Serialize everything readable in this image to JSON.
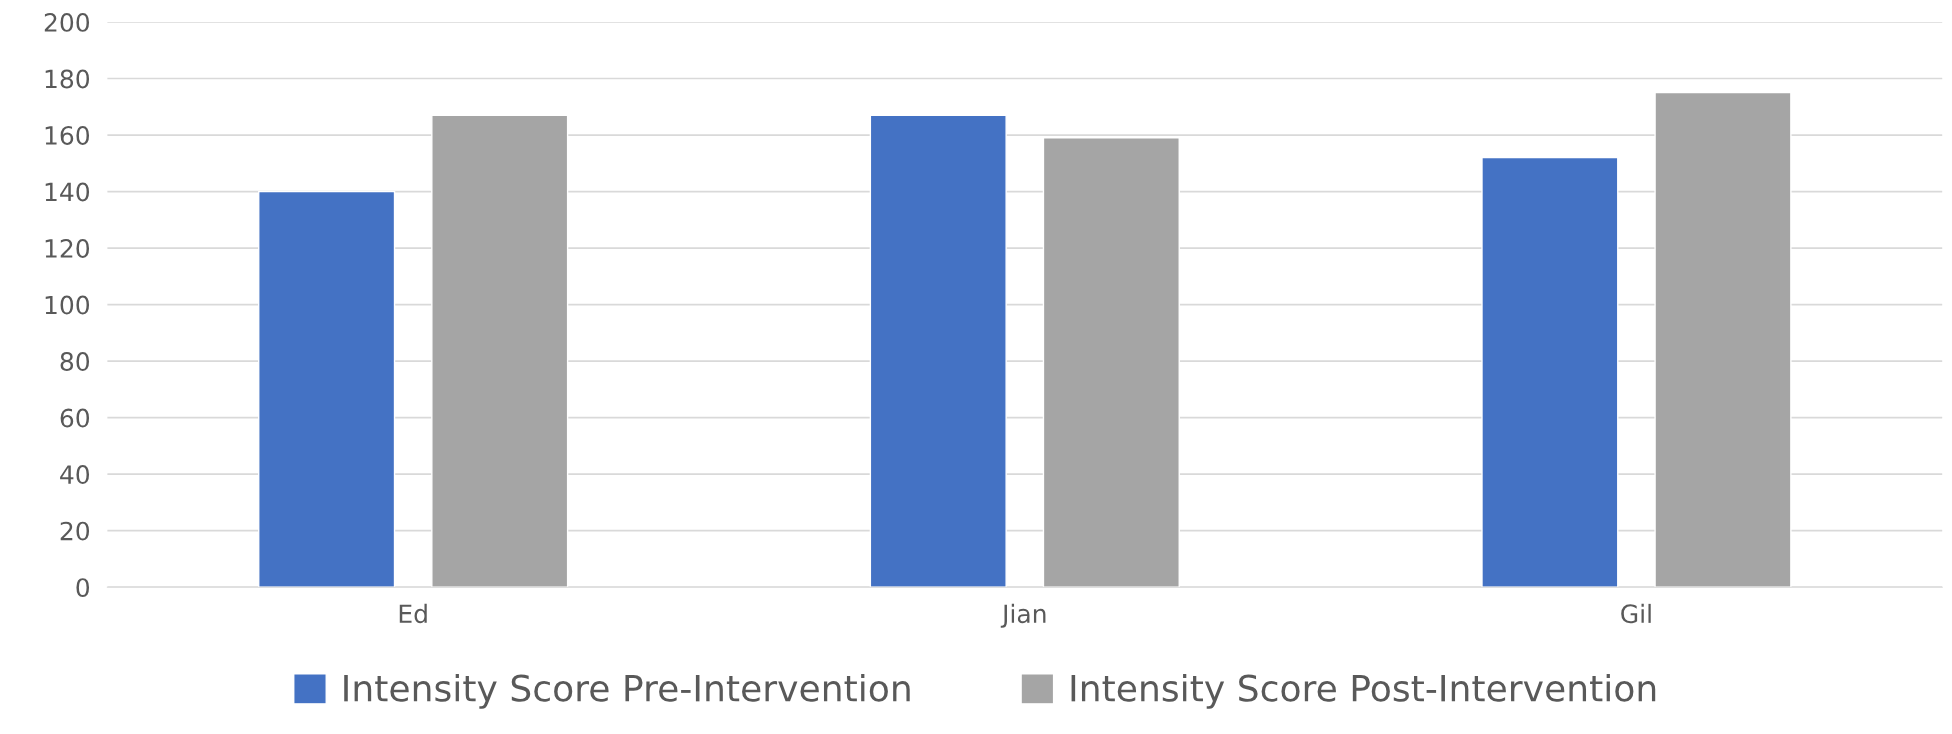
{
  "chart_data": {
    "type": "bar",
    "categories": [
      "Ed",
      "Jian",
      "Gil"
    ],
    "series": [
      {
        "name": "Intensity Score Pre-Intervention",
        "color": "#4472c4",
        "values": [
          140,
          167,
          152
        ]
      },
      {
        "name": "Intensity Score Post-Intervention",
        "color": "#a5a5a5",
        "values": [
          167,
          159,
          175
        ]
      }
    ],
    "ylim": [
      0,
      200
    ],
    "yticks": [
      0,
      20,
      40,
      60,
      80,
      100,
      120,
      140,
      160,
      180,
      200
    ],
    "grid": "y",
    "legend": "bottom"
  }
}
